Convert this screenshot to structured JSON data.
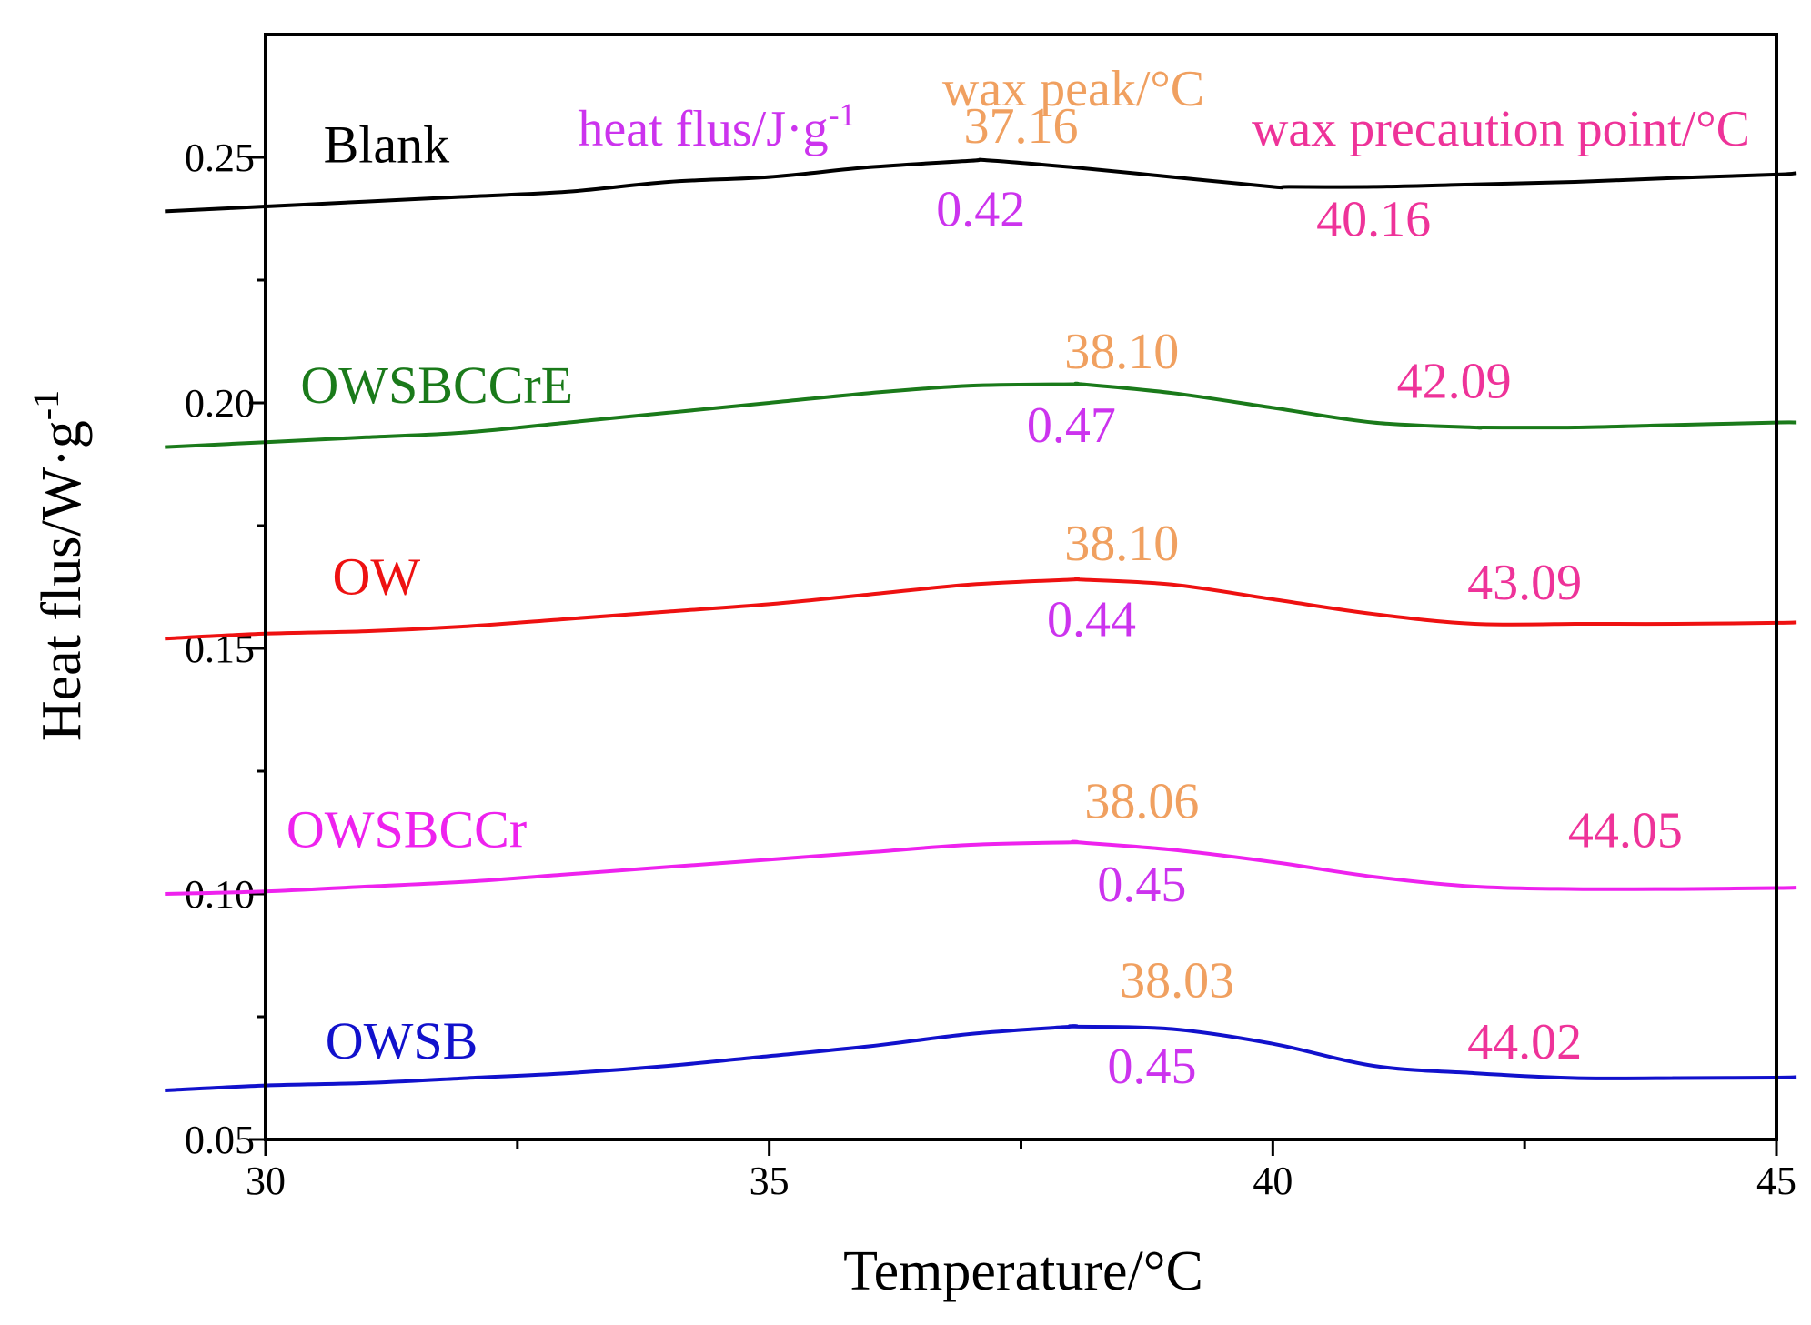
{
  "chart_data": {
    "type": "line",
    "xlabel": "Temperature/°C",
    "ylabel": "Heat flus/W·g",
    "ylabel_sup": "-1",
    "xlim": [
      30,
      45
    ],
    "ylim": [
      0.05,
      0.275
    ],
    "xticks": [
      30,
      35,
      40,
      45
    ],
    "xtick_labels": [
      "30",
      "35",
      "40",
      "45"
    ],
    "yticks": [
      0.05,
      0.1,
      0.15,
      0.2,
      0.25
    ],
    "ytick_labels": [
      "0.05",
      "0.10",
      "0.15",
      "0.20",
      "0.25"
    ],
    "legend_headers": {
      "heat_flux": "heat flus/J·g",
      "heat_flux_sup": "-1",
      "wax_peak": "wax peak/°C",
      "wax_precaution": "wax precaution point/°C"
    },
    "colors": {
      "heat_flux_label": "#cc33ee",
      "wax_peak_label": "#f0a060",
      "wax_precaution_label": "#ee3399"
    },
    "series": [
      {
        "name": "Blank",
        "color": "#000000",
        "label_at": [
          31.2,
          0.249
        ],
        "x": [
          29,
          30,
          31,
          32,
          33,
          34,
          35,
          36,
          37,
          37.16,
          38,
          39,
          40,
          40.16,
          41,
          42,
          43,
          44,
          45,
          45.2
        ],
        "values": [
          0.239,
          0.24,
          0.241,
          0.242,
          0.243,
          0.245,
          0.246,
          0.248,
          0.2493,
          0.2494,
          0.248,
          0.246,
          0.244,
          0.244,
          0.244,
          0.2445,
          0.245,
          0.2458,
          0.2465,
          0.2468
        ],
        "wax_peak": "37.16",
        "heat_flux": "0.42",
        "wax_precaution": "40.16",
        "peak_label_at": [
          37.5,
          0.253
        ],
        "heat_label_at": [
          37.1,
          0.236
        ],
        "precaution_label_at": [
          41.0,
          0.234
        ]
      },
      {
        "name": "OWSBCCrE",
        "color": "#1a7a1a",
        "label_at": [
          31.7,
          0.2
        ],
        "x": [
          29,
          30,
          31,
          32,
          33,
          34,
          35,
          36,
          37,
          38,
          38.1,
          39,
          40,
          41,
          42,
          42.09,
          43,
          44,
          45,
          45.2
        ],
        "values": [
          0.191,
          0.192,
          0.193,
          0.194,
          0.196,
          0.198,
          0.2,
          0.202,
          0.2035,
          0.2038,
          0.2038,
          0.202,
          0.199,
          0.196,
          0.195,
          0.195,
          0.195,
          0.1955,
          0.196,
          0.196
        ],
        "wax_peak": "38.10",
        "heat_flux": "0.47",
        "wax_precaution": "42.09",
        "peak_label_at": [
          38.5,
          0.207
        ],
        "heat_label_at": [
          38.0,
          0.192
        ],
        "precaution_label_at": [
          41.8,
          0.201
        ]
      },
      {
        "name": "OW",
        "color": "#ee1111",
        "label_at": [
          31.1,
          0.161
        ],
        "x": [
          29,
          30,
          31,
          32,
          33,
          34,
          35,
          36,
          37,
          38,
          38.1,
          39,
          40,
          41,
          42,
          43,
          43.09,
          44,
          45,
          45.2
        ],
        "values": [
          0.152,
          0.153,
          0.1535,
          0.1545,
          0.156,
          0.1575,
          0.159,
          0.161,
          0.163,
          0.164,
          0.164,
          0.163,
          0.16,
          0.157,
          0.155,
          0.155,
          0.155,
          0.155,
          0.1552,
          0.1553
        ],
        "wax_peak": "38.10",
        "heat_flux": "0.44",
        "wax_precaution": "43.09",
        "peak_label_at": [
          38.5,
          0.168
        ],
        "heat_label_at": [
          38.2,
          0.1525
        ],
        "precaution_label_at": [
          42.5,
          0.16
        ]
      },
      {
        "name": "OWSBCCr",
        "color": "#ee22ee",
        "label_at": [
          31.4,
          0.1095
        ],
        "x": [
          29,
          30,
          31,
          32,
          33,
          34,
          35,
          36,
          37,
          38,
          38.06,
          39,
          40,
          41,
          42,
          43,
          44,
          44.05,
          45,
          45.2
        ],
        "values": [
          0.1,
          0.1005,
          0.1015,
          0.1025,
          0.104,
          0.1055,
          0.107,
          0.1085,
          0.11,
          0.1105,
          0.1105,
          0.109,
          0.1065,
          0.1035,
          0.1015,
          0.101,
          0.101,
          0.101,
          0.1012,
          0.1013
        ],
        "wax_peak": "38.06",
        "heat_flux": "0.45",
        "wax_precaution": "44.05",
        "peak_label_at": [
          38.7,
          0.1155
        ],
        "heat_label_at": [
          38.7,
          0.0985
        ],
        "precaution_label_at": [
          43.5,
          0.1095
        ]
      },
      {
        "name": "OWSB",
        "color": "#1111cc",
        "label_at": [
          31.35,
          0.0665
        ],
        "x": [
          29,
          30,
          31,
          32,
          33,
          34,
          35,
          36,
          37,
          38,
          38.03,
          39,
          40,
          41,
          42,
          43,
          44,
          44.02,
          45,
          45.2
        ],
        "values": [
          0.06,
          0.061,
          0.0615,
          0.0625,
          0.0635,
          0.065,
          0.067,
          0.069,
          0.0715,
          0.073,
          0.073,
          0.0725,
          0.0695,
          0.065,
          0.0635,
          0.0625,
          0.0625,
          0.0625,
          0.0626,
          0.0627
        ],
        "wax_peak": "38.03",
        "heat_flux": "0.45",
        "wax_precaution": "44.02",
        "peak_label_at": [
          39.05,
          0.079
        ],
        "heat_label_at": [
          38.8,
          0.0615
        ],
        "precaution_label_at": [
          42.5,
          0.0665
        ]
      }
    ]
  }
}
